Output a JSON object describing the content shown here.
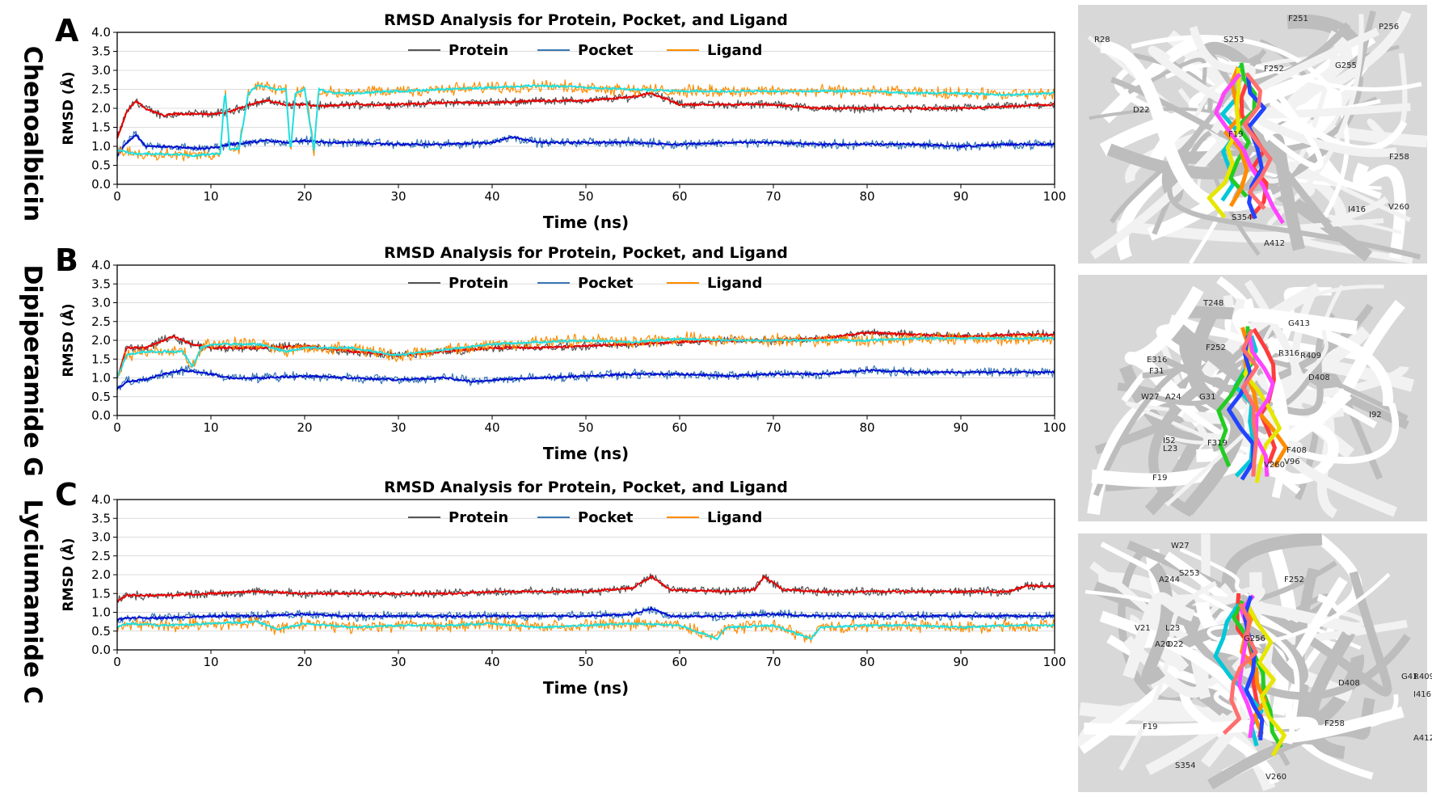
{
  "figure": {
    "panels": [
      {
        "letter": "A",
        "compound": "Chenoalbicin"
      },
      {
        "letter": "B",
        "compound": "Dipiperamide G"
      },
      {
        "letter": "C",
        "compound": "Lyciumamide C"
      }
    ]
  },
  "colors": {
    "protein": "#555555",
    "pocket": "#3b78b5",
    "ligand": "#ff8c00",
    "protein_avg": "#e60000",
    "pocket_avg": "#0010d0",
    "ligand_avg": "#20e0e0"
  },
  "structures": [
    {
      "labels": [
        "R28",
        "F251",
        "S253",
        "P256",
        "F252",
        "G255",
        "D22",
        "F19",
        "F258",
        "V260",
        "I416",
        "S354",
        "A412"
      ]
    },
    {
      "labels": [
        "T248",
        "G413",
        "R409",
        "F252",
        "E316",
        "R316",
        "F31",
        "D408",
        "W27",
        "A24",
        "G31",
        "I92",
        "I52",
        "L23",
        "F319",
        "F408",
        "V96",
        "F19",
        "V260"
      ]
    },
    {
      "labels": [
        "W27",
        "A244",
        "S253",
        "F252",
        "V21",
        "L23",
        "A20",
        "D22",
        "G256",
        "G41",
        "R409",
        "I416",
        "D408",
        "F258",
        "A412",
        "F19",
        "S354",
        "V260"
      ]
    }
  ],
  "chart_data": [
    {
      "type": "line",
      "title": "RMSD Analysis for Protein, Pocket, and Ligand",
      "xlabel": "Time (ns)",
      "ylabel": "RMSD (Å)",
      "xlim": [
        0,
        100
      ],
      "ylim": [
        0,
        4.0
      ],
      "xticks": [
        0,
        10,
        20,
        30,
        40,
        50,
        60,
        70,
        80,
        90,
        100
      ],
      "yticks": [
        "0.0",
        "0.5",
        "1.0",
        "1.5",
        "2.0",
        "2.5",
        "3.0",
        "3.5",
        "4.0"
      ],
      "legend": [
        "Protein",
        "Pocket",
        "Ligand"
      ],
      "grid": true,
      "series": [
        {
          "name": "Protein",
          "x": [
            0,
            1,
            2,
            3,
            5,
            6,
            8,
            10,
            12,
            14,
            16,
            18,
            20,
            22,
            25,
            30,
            35,
            40,
            45,
            50,
            55,
            57,
            60,
            65,
            70,
            75,
            80,
            85,
            90,
            95,
            100
          ],
          "values": [
            1.2,
            1.9,
            2.2,
            2.0,
            1.8,
            1.85,
            1.85,
            1.85,
            1.9,
            2.1,
            2.2,
            2.1,
            2.1,
            2.05,
            2.1,
            2.1,
            2.15,
            2.15,
            2.2,
            2.2,
            2.3,
            2.4,
            2.1,
            2.1,
            2.1,
            2.0,
            2.0,
            2.0,
            2.0,
            2.05,
            2.1
          ]
        },
        {
          "name": "Pocket",
          "x": [
            0,
            1,
            2,
            3,
            5,
            8,
            10,
            12,
            14,
            16,
            18,
            20,
            22,
            25,
            30,
            35,
            40,
            42,
            45,
            50,
            55,
            60,
            65,
            70,
            75,
            80,
            85,
            90,
            95,
            100
          ],
          "values": [
            0.75,
            1.1,
            1.3,
            1.0,
            1.0,
            0.95,
            0.95,
            1.05,
            1.1,
            1.15,
            1.1,
            1.15,
            1.1,
            1.1,
            1.05,
            1.05,
            1.1,
            1.25,
            1.1,
            1.1,
            1.1,
            1.05,
            1.1,
            1.1,
            1.05,
            1.05,
            1.05,
            1.0,
            1.05,
            1.05
          ]
        },
        {
          "name": "Ligand",
          "x": [
            0,
            1,
            2,
            4,
            6,
            8,
            10,
            11,
            11.5,
            12,
            13,
            14,
            15,
            17,
            18,
            18.5,
            19,
            20,
            21,
            21.5,
            23,
            25,
            30,
            35,
            40,
            45,
            50,
            55,
            60,
            65,
            70,
            75,
            80,
            85,
            90,
            95,
            100
          ],
          "values": [
            0.9,
            0.85,
            0.8,
            0.8,
            0.8,
            0.75,
            0.8,
            0.8,
            2.5,
            0.9,
            0.95,
            2.4,
            2.6,
            2.5,
            2.5,
            0.8,
            2.4,
            2.5,
            0.9,
            2.5,
            2.4,
            2.4,
            2.45,
            2.5,
            2.55,
            2.6,
            2.55,
            2.5,
            2.45,
            2.45,
            2.45,
            2.45,
            2.45,
            2.4,
            2.4,
            2.35,
            2.4
          ]
        }
      ]
    },
    {
      "type": "line",
      "title": "RMSD Analysis for Protein, Pocket, and Ligand",
      "xlabel": "Time (ns)",
      "ylabel": "RMSD (Å)",
      "xlim": [
        0,
        100
      ],
      "ylim": [
        0,
        4.0
      ],
      "xticks": [
        0,
        10,
        20,
        30,
        40,
        50,
        60,
        70,
        80,
        90,
        100
      ],
      "yticks": [
        "0.0",
        "0.5",
        "1.0",
        "1.5",
        "2.0",
        "2.5",
        "3.0",
        "3.5",
        "4.0"
      ],
      "legend": [
        "Protein",
        "Pocket",
        "Ligand"
      ],
      "grid": true,
      "series": [
        {
          "name": "Protein",
          "x": [
            0,
            1,
            3,
            5,
            6,
            8,
            10,
            15,
            20,
            25,
            30,
            35,
            40,
            45,
            50,
            55,
            60,
            65,
            70,
            75,
            80,
            85,
            90,
            95,
            100
          ],
          "values": [
            1.0,
            1.8,
            1.8,
            2.0,
            2.1,
            1.9,
            1.8,
            1.8,
            1.85,
            1.7,
            1.6,
            1.7,
            1.8,
            1.8,
            1.85,
            1.9,
            1.95,
            2.0,
            2.0,
            2.05,
            2.2,
            2.15,
            2.1,
            2.15,
            2.15
          ]
        },
        {
          "name": "Pocket",
          "x": [
            0,
            1,
            3,
            5,
            7,
            9,
            12,
            15,
            20,
            25,
            30,
            35,
            38,
            40,
            45,
            50,
            55,
            60,
            65,
            70,
            75,
            80,
            85,
            90,
            95,
            100
          ],
          "values": [
            0.7,
            0.9,
            0.95,
            1.1,
            1.2,
            1.15,
            1.0,
            1.0,
            1.05,
            1.0,
            0.95,
            1.0,
            0.9,
            0.95,
            1.0,
            1.05,
            1.1,
            1.1,
            1.05,
            1.1,
            1.1,
            1.2,
            1.15,
            1.15,
            1.15,
            1.15
          ]
        },
        {
          "name": "Ligand",
          "x": [
            0,
            1,
            3,
            5,
            7,
            8,
            9,
            10,
            15,
            18,
            20,
            25,
            30,
            35,
            40,
            45,
            50,
            55,
            60,
            65,
            70,
            75,
            80,
            85,
            90,
            95,
            100
          ],
          "values": [
            1.0,
            1.6,
            1.7,
            1.7,
            1.7,
            1.3,
            1.8,
            1.9,
            1.9,
            1.7,
            1.8,
            1.8,
            1.6,
            1.75,
            1.9,
            1.95,
            2.0,
            1.95,
            2.05,
            2.0,
            2.0,
            2.0,
            2.0,
            2.05,
            2.05,
            2.05,
            2.05
          ]
        }
      ]
    },
    {
      "type": "line",
      "title": "RMSD Analysis for Protein, Pocket, and Ligand",
      "xlabel": "Time (ns)",
      "ylabel": "RMSD (Å)",
      "xlim": [
        0,
        100
      ],
      "ylim": [
        0,
        4.0
      ],
      "xticks": [
        0,
        10,
        20,
        30,
        40,
        50,
        60,
        70,
        80,
        90,
        100
      ],
      "yticks": [
        "0.0",
        "0.5",
        "1.0",
        "1.5",
        "2.0",
        "2.5",
        "3.0",
        "3.5",
        "4.0"
      ],
      "legend": [
        "Protein",
        "Pocket",
        "Ligand"
      ],
      "grid": true,
      "series": [
        {
          "name": "Protein",
          "x": [
            0,
            1,
            5,
            10,
            15,
            20,
            25,
            30,
            35,
            40,
            45,
            50,
            55,
            57,
            59,
            65,
            68,
            69,
            71,
            75,
            80,
            85,
            90,
            95,
            97,
            100
          ],
          "values": [
            1.3,
            1.45,
            1.45,
            1.5,
            1.55,
            1.5,
            1.5,
            1.5,
            1.5,
            1.55,
            1.55,
            1.55,
            1.65,
            1.95,
            1.6,
            1.55,
            1.6,
            1.95,
            1.6,
            1.55,
            1.55,
            1.55,
            1.55,
            1.55,
            1.7,
            1.7
          ]
        },
        {
          "name": "Pocket",
          "x": [
            0,
            1,
            5,
            10,
            15,
            20,
            25,
            30,
            35,
            40,
            45,
            50,
            55,
            57,
            59,
            65,
            70,
            75,
            80,
            85,
            90,
            95,
            100
          ],
          "values": [
            0.8,
            0.85,
            0.85,
            0.9,
            0.9,
            0.95,
            0.9,
            0.9,
            0.9,
            0.9,
            0.9,
            0.9,
            0.95,
            1.1,
            0.9,
            0.9,
            0.95,
            0.9,
            0.9,
            0.9,
            0.9,
            0.9,
            0.9
          ]
        },
        {
          "name": "Ligand",
          "x": [
            0,
            1,
            5,
            10,
            15,
            17,
            20,
            25,
            30,
            35,
            40,
            45,
            50,
            55,
            60,
            64,
            65,
            70,
            74,
            75,
            80,
            85,
            90,
            95,
            100
          ],
          "values": [
            0.6,
            0.7,
            0.65,
            0.7,
            0.75,
            0.55,
            0.7,
            0.6,
            0.65,
            0.65,
            0.7,
            0.6,
            0.65,
            0.7,
            0.65,
            0.3,
            0.6,
            0.65,
            0.3,
            0.6,
            0.65,
            0.65,
            0.6,
            0.65,
            0.65
          ]
        }
      ]
    }
  ]
}
